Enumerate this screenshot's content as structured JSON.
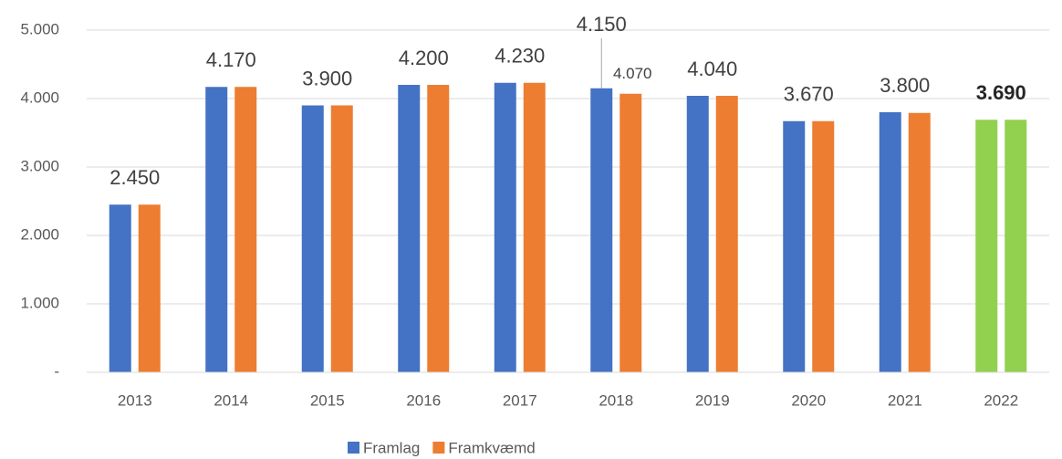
{
  "chart_data": {
    "type": "bar",
    "categories": [
      "2013",
      "2014",
      "2015",
      "2016",
      "2017",
      "2018",
      "2019",
      "2020",
      "2021",
      "2022"
    ],
    "series": [
      {
        "name": "Framlag",
        "color": "#4472c4",
        "colors": [
          "#4472c4",
          "#4472c4",
          "#4472c4",
          "#4472c4",
          "#4472c4",
          "#4472c4",
          "#4472c4",
          "#4472c4",
          "#4472c4",
          "#92d050"
        ],
        "values": [
          2450,
          4170,
          3900,
          4200,
          4230,
          4150,
          4040,
          3670,
          3800,
          3690
        ],
        "value_labels": [
          "2.450",
          "4.170",
          "3.900",
          "4.200",
          "4.230",
          "4.150",
          "4.040",
          "3.670",
          "3.800",
          "3.690"
        ]
      },
      {
        "name": "Framkvæmd",
        "color": "#ed7d31",
        "colors": [
          "#ed7d31",
          "#ed7d31",
          "#ed7d31",
          "#ed7d31",
          "#ed7d31",
          "#ed7d31",
          "#ed7d31",
          "#ed7d31",
          "#ed7d31",
          "#92d050"
        ],
        "values": [
          2450,
          4170,
          3900,
          4200,
          4230,
          4070,
          4040,
          3670,
          3790,
          3690
        ],
        "value_labels": [
          null,
          null,
          null,
          null,
          null,
          "4.070",
          null,
          null,
          null,
          null
        ]
      }
    ],
    "bold_label_indices": [
      9
    ],
    "ylim": [
      0,
      5000
    ],
    "yticks": [
      {
        "value": 0,
        "label": "-"
      },
      {
        "value": 1000,
        "label": "1.000"
      },
      {
        "value": 2000,
        "label": "2.000"
      },
      {
        "value": 3000,
        "label": "3.000"
      },
      {
        "value": 4000,
        "label": "4.000"
      },
      {
        "value": 5000,
        "label": "5.000"
      }
    ],
    "grid": true,
    "legend": "bottom"
  }
}
